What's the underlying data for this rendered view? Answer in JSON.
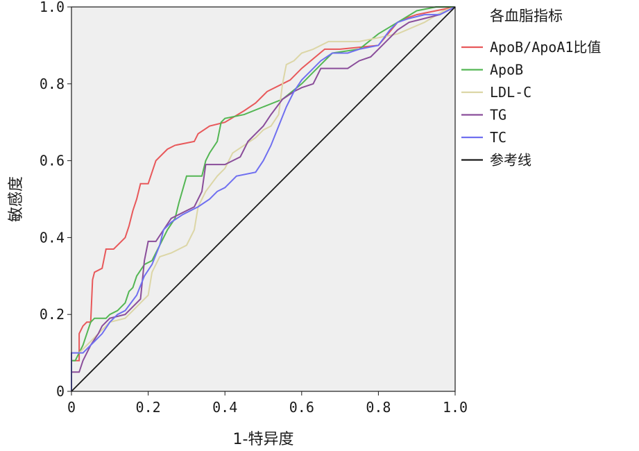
{
  "chart_data": {
    "type": "line",
    "title": "",
    "xlabel": "1-特异度",
    "ylabel": "敏感度",
    "xlim": [
      0,
      1
    ],
    "ylim": [
      0,
      1
    ],
    "x_ticks": [
      "0",
      "0.2",
      "0.4",
      "0.6",
      "0.8",
      "1.0"
    ],
    "y_ticks": [
      "0",
      "0.2",
      "0.4",
      "0.6",
      "0.8",
      "1.0"
    ],
    "x_tick_values": [
      0,
      0.2,
      0.4,
      0.6,
      0.8,
      1.0
    ],
    "y_tick_values": [
      0,
      0.2,
      0.4,
      0.6,
      0.8,
      1.0
    ],
    "grid": false,
    "plot_background": "#efefef",
    "legend": {
      "title": "各血脂指标",
      "position": "right"
    },
    "series": [
      {
        "name": "ApoB/ApoA1比值",
        "color": "#e8585a",
        "points": [
          [
            0,
            0
          ],
          [
            0,
            0.08
          ],
          [
            0.02,
            0.08
          ],
          [
            0.02,
            0.15
          ],
          [
            0.03,
            0.17
          ],
          [
            0.04,
            0.18
          ],
          [
            0.05,
            0.18
          ],
          [
            0.055,
            0.29
          ],
          [
            0.06,
            0.31
          ],
          [
            0.08,
            0.32
          ],
          [
            0.09,
            0.37
          ],
          [
            0.11,
            0.37
          ],
          [
            0.13,
            0.39
          ],
          [
            0.14,
            0.4
          ],
          [
            0.15,
            0.43
          ],
          [
            0.16,
            0.47
          ],
          [
            0.17,
            0.5
          ],
          [
            0.18,
            0.54
          ],
          [
            0.2,
            0.54
          ],
          [
            0.21,
            0.57
          ],
          [
            0.22,
            0.6
          ],
          [
            0.25,
            0.63
          ],
          [
            0.27,
            0.64
          ],
          [
            0.32,
            0.65
          ],
          [
            0.33,
            0.67
          ],
          [
            0.36,
            0.69
          ],
          [
            0.4,
            0.7
          ],
          [
            0.45,
            0.73
          ],
          [
            0.48,
            0.75
          ],
          [
            0.51,
            0.78
          ],
          [
            0.55,
            0.8
          ],
          [
            0.57,
            0.81
          ],
          [
            0.6,
            0.84
          ],
          [
            0.66,
            0.89
          ],
          [
            0.7,
            0.89
          ],
          [
            0.8,
            0.9
          ],
          [
            0.85,
            0.96
          ],
          [
            0.87,
            0.97
          ],
          [
            0.9,
            0.98
          ],
          [
            0.95,
            0.99
          ],
          [
            1,
            1
          ]
        ]
      },
      {
        "name": "ApoB",
        "color": "#53b653",
        "points": [
          [
            0,
            0
          ],
          [
            0,
            0.08
          ],
          [
            0.01,
            0.08
          ],
          [
            0.03,
            0.12
          ],
          [
            0.04,
            0.15
          ],
          [
            0.05,
            0.18
          ],
          [
            0.06,
            0.19
          ],
          [
            0.09,
            0.19
          ],
          [
            0.1,
            0.2
          ],
          [
            0.12,
            0.21
          ],
          [
            0.13,
            0.22
          ],
          [
            0.14,
            0.23
          ],
          [
            0.15,
            0.26
          ],
          [
            0.16,
            0.27
          ],
          [
            0.17,
            0.3
          ],
          [
            0.19,
            0.33
          ],
          [
            0.21,
            0.34
          ],
          [
            0.23,
            0.38
          ],
          [
            0.25,
            0.42
          ],
          [
            0.27,
            0.45
          ],
          [
            0.28,
            0.49
          ],
          [
            0.3,
            0.56
          ],
          [
            0.34,
            0.56
          ],
          [
            0.35,
            0.6
          ],
          [
            0.36,
            0.62
          ],
          [
            0.38,
            0.65
          ],
          [
            0.39,
            0.7
          ],
          [
            0.4,
            0.71
          ],
          [
            0.45,
            0.72
          ],
          [
            0.5,
            0.74
          ],
          [
            0.55,
            0.76
          ],
          [
            0.6,
            0.8
          ],
          [
            0.65,
            0.85
          ],
          [
            0.68,
            0.88
          ],
          [
            0.75,
            0.89
          ],
          [
            0.8,
            0.93
          ],
          [
            0.85,
            0.96
          ],
          [
            0.9,
            0.99
          ],
          [
            0.95,
            1
          ],
          [
            1,
            1
          ]
        ]
      },
      {
        "name": "LDL-C",
        "color": "#dcd6a6",
        "points": [
          [
            0,
            0
          ],
          [
            0,
            0.1
          ],
          [
            0.02,
            0.1
          ],
          [
            0.05,
            0.13
          ],
          [
            0.07,
            0.15
          ],
          [
            0.09,
            0.17
          ],
          [
            0.1,
            0.18
          ],
          [
            0.14,
            0.19
          ],
          [
            0.15,
            0.2
          ],
          [
            0.16,
            0.21
          ],
          [
            0.18,
            0.23
          ],
          [
            0.2,
            0.25
          ],
          [
            0.21,
            0.31
          ],
          [
            0.23,
            0.35
          ],
          [
            0.26,
            0.36
          ],
          [
            0.3,
            0.38
          ],
          [
            0.32,
            0.42
          ],
          [
            0.33,
            0.48
          ],
          [
            0.35,
            0.52
          ],
          [
            0.38,
            0.56
          ],
          [
            0.4,
            0.58
          ],
          [
            0.42,
            0.62
          ],
          [
            0.45,
            0.64
          ],
          [
            0.48,
            0.66
          ],
          [
            0.5,
            0.68
          ],
          [
            0.52,
            0.69
          ],
          [
            0.54,
            0.72
          ],
          [
            0.55,
            0.8
          ],
          [
            0.56,
            0.85
          ],
          [
            0.58,
            0.86
          ],
          [
            0.6,
            0.88
          ],
          [
            0.63,
            0.89
          ],
          [
            0.67,
            0.91
          ],
          [
            0.75,
            0.91
          ],
          [
            0.85,
            0.93
          ],
          [
            0.92,
            0.96
          ],
          [
            0.97,
            0.99
          ],
          [
            1,
            1
          ]
        ]
      },
      {
        "name": "TG",
        "color": "#8a4d9a",
        "points": [
          [
            0,
            0
          ],
          [
            0,
            0.05
          ],
          [
            0.02,
            0.05
          ],
          [
            0.03,
            0.08
          ],
          [
            0.05,
            0.12
          ],
          [
            0.07,
            0.15
          ],
          [
            0.08,
            0.17
          ],
          [
            0.1,
            0.19
          ],
          [
            0.14,
            0.2
          ],
          [
            0.16,
            0.22
          ],
          [
            0.18,
            0.24
          ],
          [
            0.19,
            0.34
          ],
          [
            0.2,
            0.39
          ],
          [
            0.22,
            0.39
          ],
          [
            0.24,
            0.42
          ],
          [
            0.26,
            0.45
          ],
          [
            0.28,
            0.46
          ],
          [
            0.3,
            0.47
          ],
          [
            0.32,
            0.48
          ],
          [
            0.34,
            0.52
          ],
          [
            0.35,
            0.59
          ],
          [
            0.4,
            0.59
          ],
          [
            0.42,
            0.6
          ],
          [
            0.44,
            0.61
          ],
          [
            0.45,
            0.63
          ],
          [
            0.46,
            0.65
          ],
          [
            0.48,
            0.67
          ],
          [
            0.5,
            0.69
          ],
          [
            0.52,
            0.72
          ],
          [
            0.55,
            0.76
          ],
          [
            0.58,
            0.78
          ],
          [
            0.6,
            0.79
          ],
          [
            0.63,
            0.8
          ],
          [
            0.65,
            0.84
          ],
          [
            0.72,
            0.84
          ],
          [
            0.75,
            0.86
          ],
          [
            0.78,
            0.87
          ],
          [
            0.8,
            0.89
          ],
          [
            0.83,
            0.92
          ],
          [
            0.85,
            0.94
          ],
          [
            0.88,
            0.96
          ],
          [
            0.92,
            0.97
          ],
          [
            0.96,
            0.98
          ],
          [
            1,
            1
          ]
        ]
      },
      {
        "name": "TC",
        "color": "#6f6ff0",
        "points": [
          [
            0,
            0
          ],
          [
            0,
            0.1
          ],
          [
            0.03,
            0.1
          ],
          [
            0.04,
            0.11
          ],
          [
            0.06,
            0.13
          ],
          [
            0.08,
            0.15
          ],
          [
            0.1,
            0.18
          ],
          [
            0.12,
            0.2
          ],
          [
            0.14,
            0.21
          ],
          [
            0.17,
            0.25
          ],
          [
            0.19,
            0.3
          ],
          [
            0.21,
            0.33
          ],
          [
            0.23,
            0.38
          ],
          [
            0.24,
            0.42
          ],
          [
            0.26,
            0.44
          ],
          [
            0.29,
            0.46
          ],
          [
            0.31,
            0.47
          ],
          [
            0.33,
            0.48
          ],
          [
            0.36,
            0.5
          ],
          [
            0.38,
            0.52
          ],
          [
            0.4,
            0.53
          ],
          [
            0.42,
            0.55
          ],
          [
            0.43,
            0.56
          ],
          [
            0.48,
            0.57
          ],
          [
            0.5,
            0.6
          ],
          [
            0.52,
            0.64
          ],
          [
            0.54,
            0.69
          ],
          [
            0.56,
            0.74
          ],
          [
            0.58,
            0.78
          ],
          [
            0.6,
            0.81
          ],
          [
            0.62,
            0.83
          ],
          [
            0.65,
            0.86
          ],
          [
            0.68,
            0.88
          ],
          [
            0.72,
            0.88
          ],
          [
            0.75,
            0.89
          ],
          [
            0.8,
            0.9
          ],
          [
            0.83,
            0.94
          ],
          [
            0.85,
            0.96
          ],
          [
            0.88,
            0.97
          ],
          [
            0.92,
            0.98
          ],
          [
            0.96,
            0.98
          ],
          [
            1,
            1
          ]
        ]
      },
      {
        "name": "参考线",
        "color": "#1a1a1a",
        "points": [
          [
            0,
            0
          ],
          [
            1,
            1
          ]
        ]
      }
    ]
  }
}
